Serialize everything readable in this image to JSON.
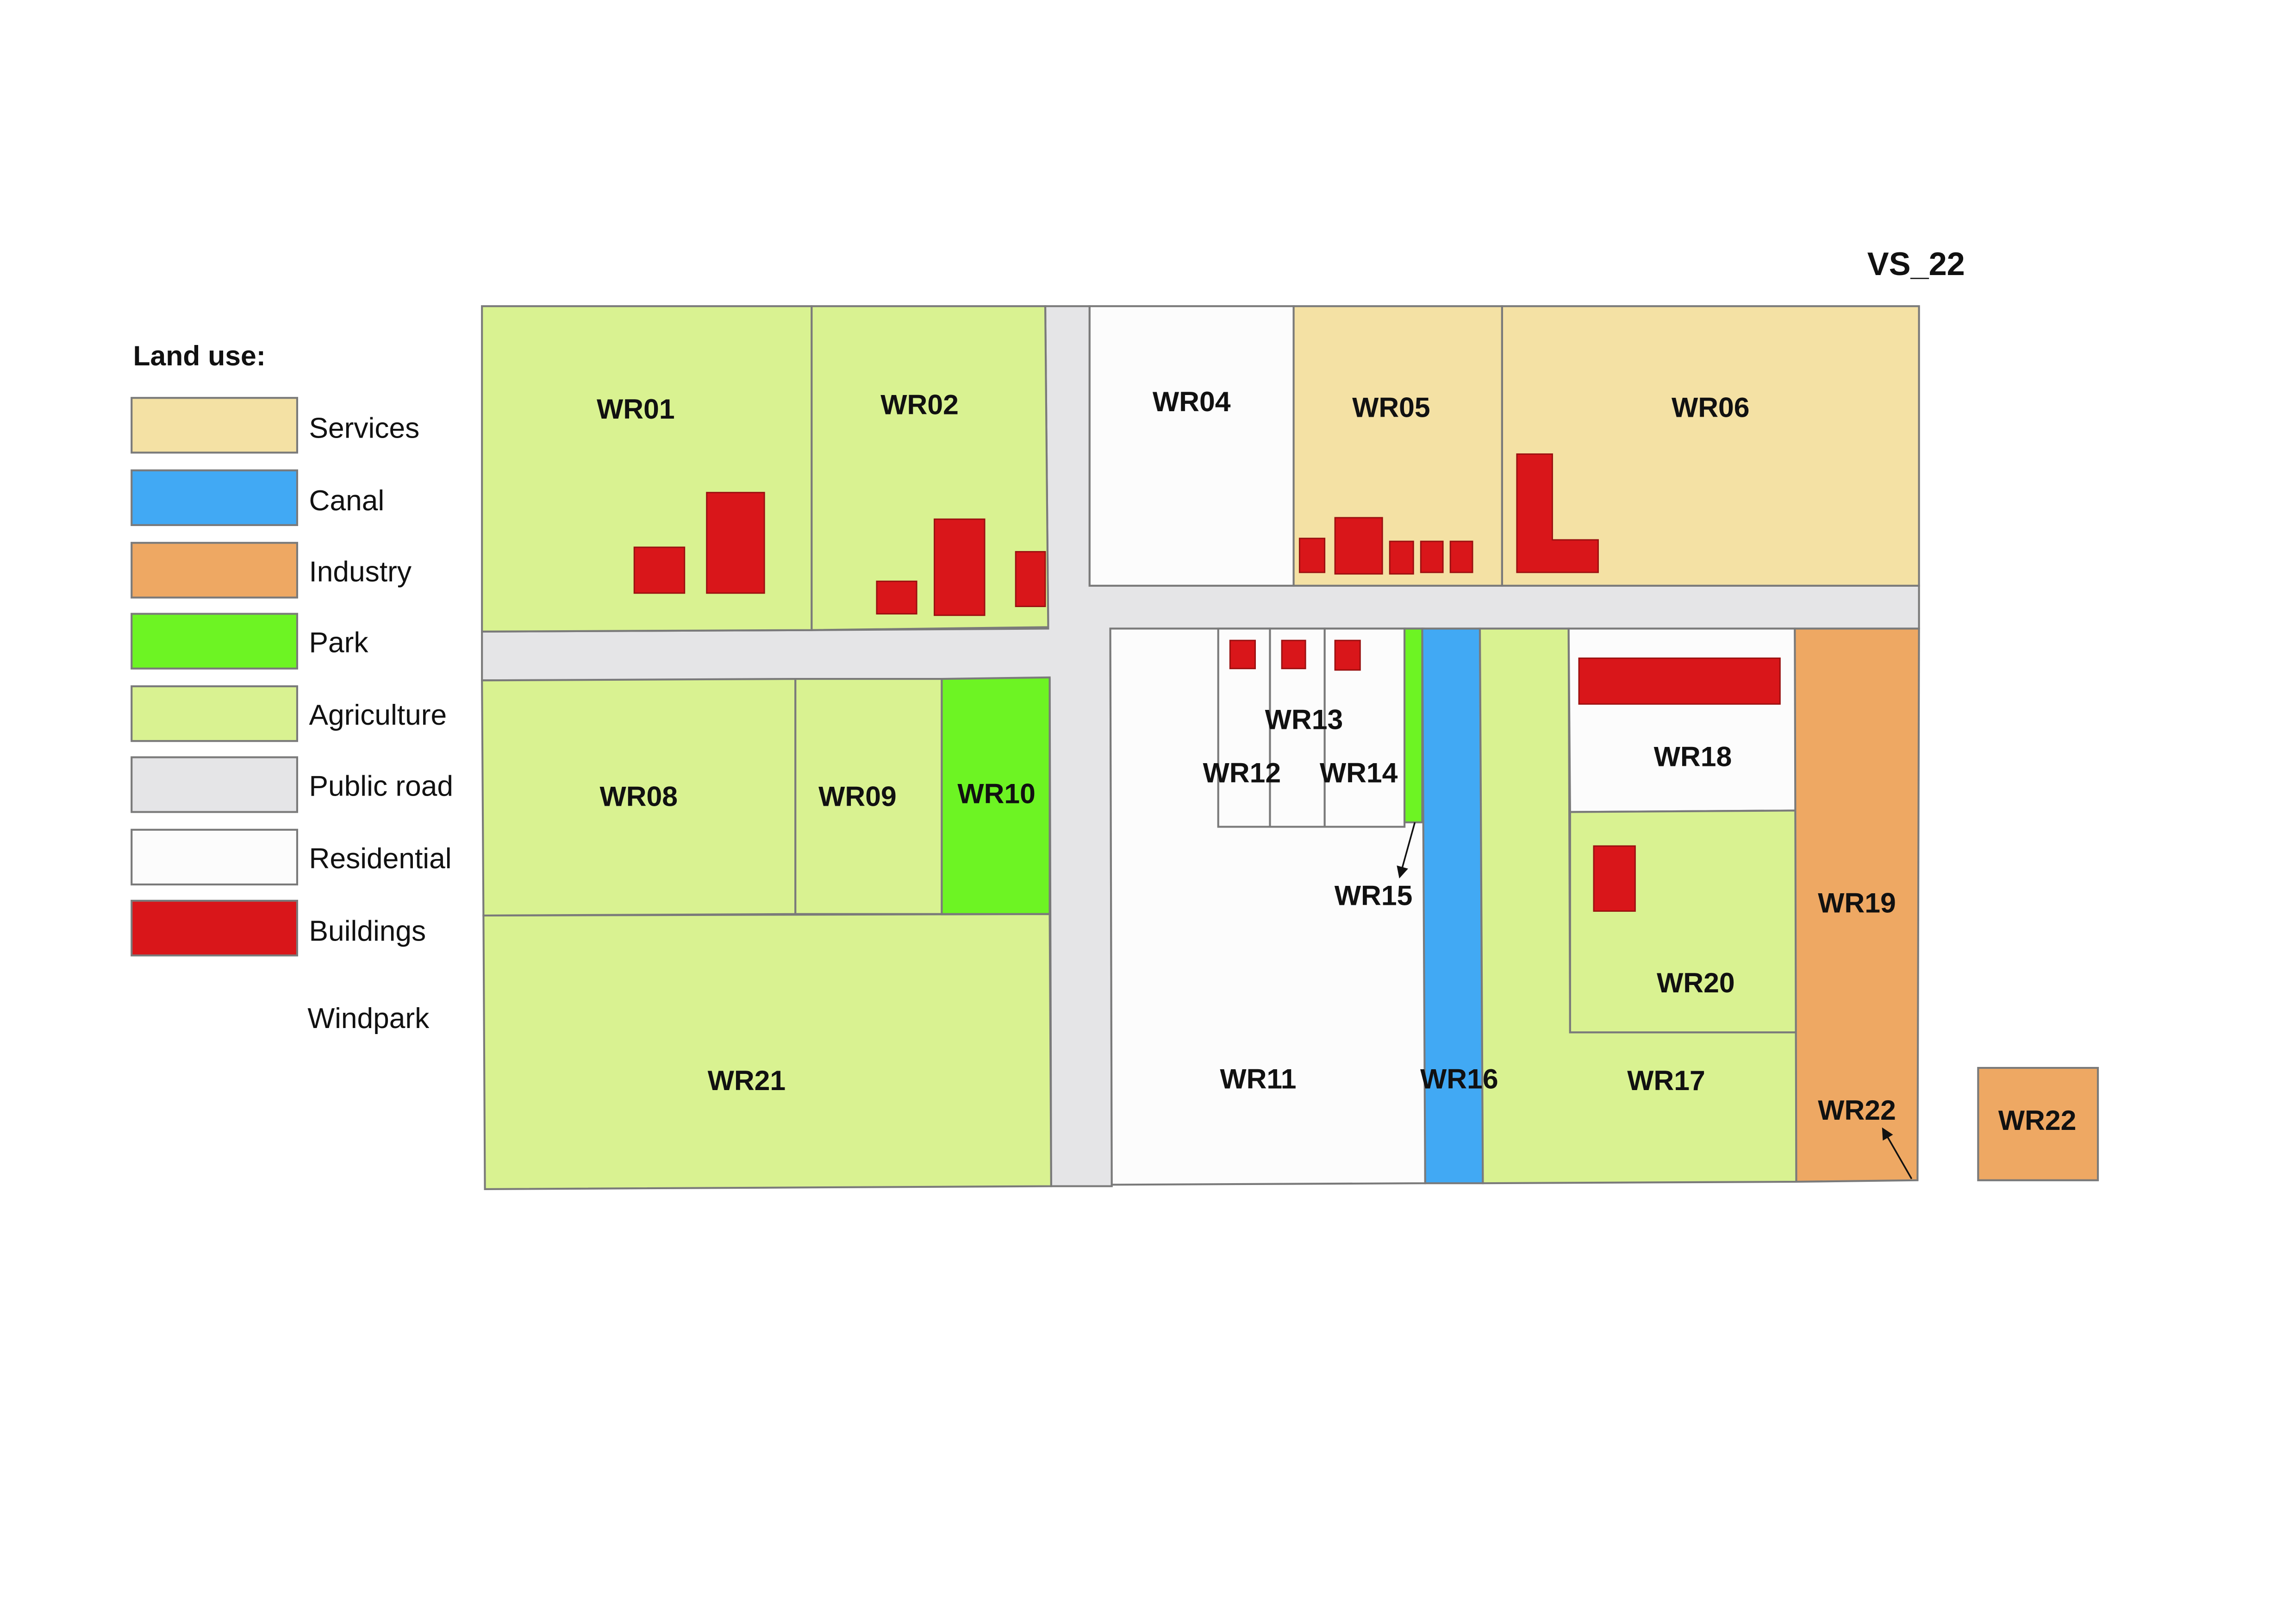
{
  "title": "VS_22",
  "legend": {
    "title": "Land use:",
    "items": [
      {
        "label": "Services",
        "color": "#F4E1A4"
      },
      {
        "label": "Canal",
        "color": "#41A9F4"
      },
      {
        "label": "Industry",
        "color": "#EEA863"
      },
      {
        "label": "Park",
        "color": "#6DF423"
      },
      {
        "label": "Agriculture",
        "color": "#D9F291"
      },
      {
        "label": "Public road",
        "color": "#E5E5E7"
      },
      {
        "label": "Residential",
        "color": "#FCFCFC"
      },
      {
        "label": "Buildings",
        "color": "#D9161A"
      },
      {
        "label": "Windpark"
      }
    ]
  },
  "parcels": [
    {
      "id": "WR01",
      "land_use": "Agriculture"
    },
    {
      "id": "WR02",
      "land_use": "Agriculture"
    },
    {
      "id": "WR04",
      "land_use": "Residential"
    },
    {
      "id": "WR05",
      "land_use": "Services"
    },
    {
      "id": "WR06",
      "land_use": "Services"
    },
    {
      "id": "WR08",
      "land_use": "Agriculture"
    },
    {
      "id": "WR09",
      "land_use": "Agriculture"
    },
    {
      "id": "WR10",
      "land_use": "Park"
    },
    {
      "id": "WR11",
      "land_use": "Residential"
    },
    {
      "id": "WR12",
      "land_use": "Residential"
    },
    {
      "id": "WR13",
      "land_use": "Residential"
    },
    {
      "id": "WR14",
      "land_use": "Residential"
    },
    {
      "id": "WR15",
      "land_use": "Park"
    },
    {
      "id": "WR16",
      "land_use": "Canal"
    },
    {
      "id": "WR17",
      "land_use": "Agriculture"
    },
    {
      "id": "WR18",
      "land_use": "Residential"
    },
    {
      "id": "WR19",
      "land_use": "Industry"
    },
    {
      "id": "WR20",
      "land_use": "Agriculture"
    },
    {
      "id": "WR21",
      "land_use": "Agriculture"
    },
    {
      "id": "WR22",
      "land_use": "Industry"
    }
  ]
}
